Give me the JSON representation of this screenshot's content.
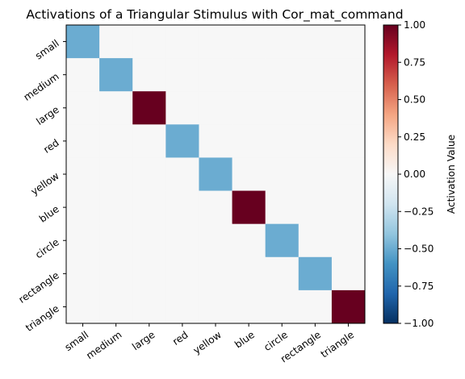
{
  "chart_data": {
    "type": "heatmap",
    "title": "Activations of a Triangular Stimulus with Cor_mat_command",
    "row_labels": [
      "small",
      "medium",
      "large",
      "red",
      "yellow",
      "blue",
      "circle",
      "rectangle",
      "triangle"
    ],
    "col_labels": [
      "small",
      "medium",
      "large",
      "red",
      "yellow",
      "blue",
      "circle",
      "rectangle",
      "triangle"
    ],
    "values": [
      [
        -0.5,
        0,
        0,
        0,
        0,
        0,
        0,
        0,
        0
      ],
      [
        0,
        -0.5,
        0,
        0,
        0,
        0,
        0,
        0,
        0
      ],
      [
        0,
        0,
        1.0,
        0,
        0,
        0,
        0,
        0,
        0
      ],
      [
        0,
        0,
        0,
        -0.5,
        0,
        0,
        0,
        0,
        0
      ],
      [
        0,
        0,
        0,
        0,
        -0.5,
        0,
        0,
        0,
        0
      ],
      [
        0,
        0,
        0,
        0,
        0,
        1.0,
        0,
        0,
        0
      ],
      [
        0,
        0,
        0,
        0,
        0,
        0,
        -0.5,
        0,
        0
      ],
      [
        0,
        0,
        0,
        0,
        0,
        0,
        0,
        -0.5,
        0
      ],
      [
        0,
        0,
        0,
        0,
        0,
        0,
        0,
        0,
        1.0
      ]
    ],
    "colormap": "RdBu_r",
    "vmin": -1.0,
    "vmax": 1.0,
    "colorbar": {
      "label": "Activation Value",
      "ticks": [
        -1.0,
        -0.75,
        -0.5,
        -0.25,
        0.0,
        0.25,
        0.5,
        0.75,
        1.0
      ],
      "tick_labels": [
        "−1.00",
        "−0.75",
        "−0.50",
        "−0.25",
        "0.00",
        "0.25",
        "0.50",
        "0.75",
        "1.00"
      ]
    },
    "colormap_stops": [
      "#053061",
      "#2166ac",
      "#4393c3",
      "#92c5de",
      "#d1e5f0",
      "#f7f7f7",
      "#fddbc7",
      "#f4a582",
      "#d6604d",
      "#b2182b",
      "#67001f"
    ]
  }
}
